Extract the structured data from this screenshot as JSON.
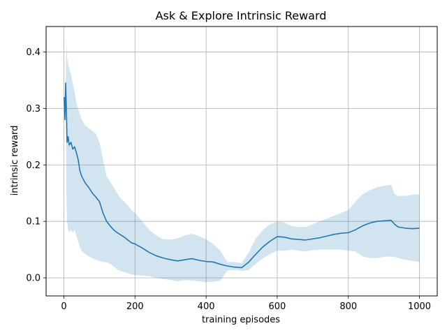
{
  "chart_data": {
    "type": "line",
    "title": "Ask & Explore Intrinsic Reward",
    "xlabel": "training episodes",
    "ylabel": "intrinsic reward",
    "xlim": [
      -50,
      1050
    ],
    "ylim": [
      -0.032,
      0.445
    ],
    "xticks": [
      0,
      200,
      400,
      600,
      800,
      1000
    ],
    "yticks": [
      0.0,
      0.1,
      0.2,
      0.3,
      0.4
    ],
    "xtick_labels": [
      "0",
      "200",
      "400",
      "600",
      "800",
      "1000"
    ],
    "ytick_labels": [
      "0.0",
      "0.1",
      "0.2",
      "0.3",
      "0.4"
    ],
    "grid": true,
    "line_color": "#1f77b4",
    "band_color": "#1f77b4",
    "series": [
      {
        "x": [
          1,
          3,
          5,
          7,
          9,
          12,
          15,
          20,
          25,
          30,
          35,
          40,
          45,
          50,
          60,
          70,
          80,
          90,
          100,
          110,
          120,
          130,
          140,
          150,
          160,
          170,
          180,
          190,
          200,
          220,
          240,
          260,
          280,
          300,
          320,
          340,
          360,
          380,
          400,
          420,
          440,
          460,
          480,
          500,
          520,
          540,
          560,
          580,
          600,
          620,
          640,
          660,
          680,
          700,
          720,
          740,
          760,
          780,
          800,
          820,
          840,
          860,
          880,
          900,
          920,
          930,
          940,
          960,
          980,
          1000
        ],
        "y": [
          0.32,
          0.28,
          0.345,
          0.3,
          0.24,
          0.25,
          0.235,
          0.24,
          0.228,
          0.232,
          0.222,
          0.21,
          0.19,
          0.18,
          0.168,
          0.16,
          0.15,
          0.143,
          0.135,
          0.115,
          0.1,
          0.092,
          0.085,
          0.08,
          0.076,
          0.072,
          0.067,
          0.062,
          0.06,
          0.053,
          0.045,
          0.039,
          0.035,
          0.032,
          0.03,
          0.032,
          0.034,
          0.031,
          0.029,
          0.028,
          0.024,
          0.021,
          0.019,
          0.018,
          0.028,
          0.042,
          0.055,
          0.065,
          0.073,
          0.072,
          0.069,
          0.068,
          0.067,
          0.069,
          0.071,
          0.074,
          0.077,
          0.079,
          0.08,
          0.085,
          0.092,
          0.097,
          0.1,
          0.101,
          0.102,
          0.095,
          0.09,
          0.088,
          0.087,
          0.088
        ],
        "lower": [
          0.32,
          0.28,
          0.345,
          0.15,
          0.1,
          0.085,
          0.08,
          0.085,
          0.08,
          0.085,
          0.075,
          0.065,
          0.055,
          0.048,
          0.042,
          0.038,
          0.035,
          0.032,
          0.03,
          0.028,
          0.028,
          0.025,
          0.02,
          0.015,
          0.012,
          0.01,
          0.008,
          0.006,
          0.005,
          0.004,
          0.003,
          0.0,
          -0.002,
          -0.004,
          -0.006,
          -0.004,
          -0.005,
          -0.006,
          -0.008,
          -0.007,
          -0.005,
          0.013,
          0.014,
          0.012,
          0.014,
          0.025,
          0.035,
          0.042,
          0.048,
          0.048,
          0.05,
          0.048,
          0.047,
          0.049,
          0.05,
          0.05,
          0.05,
          0.05,
          0.048,
          0.047,
          0.038,
          0.035,
          0.035,
          0.037,
          0.038,
          0.037,
          0.035,
          0.032,
          0.03,
          0.028
        ],
        "upper": [
          0.32,
          0.28,
          0.345,
          0.42,
          0.39,
          0.38,
          0.37,
          0.36,
          0.345,
          0.33,
          0.31,
          0.3,
          0.29,
          0.28,
          0.27,
          0.265,
          0.26,
          0.255,
          0.24,
          0.21,
          0.18,
          0.17,
          0.16,
          0.15,
          0.14,
          0.135,
          0.128,
          0.12,
          0.115,
          0.1,
          0.085,
          0.075,
          0.068,
          0.068,
          0.07,
          0.075,
          0.078,
          0.074,
          0.068,
          0.06,
          0.048,
          0.028,
          0.028,
          0.026,
          0.045,
          0.07,
          0.085,
          0.095,
          0.1,
          0.098,
          0.092,
          0.09,
          0.09,
          0.095,
          0.1,
          0.105,
          0.11,
          0.115,
          0.12,
          0.135,
          0.148,
          0.155,
          0.16,
          0.163,
          0.165,
          0.148,
          0.145,
          0.145,
          0.147,
          0.148
        ]
      }
    ]
  }
}
